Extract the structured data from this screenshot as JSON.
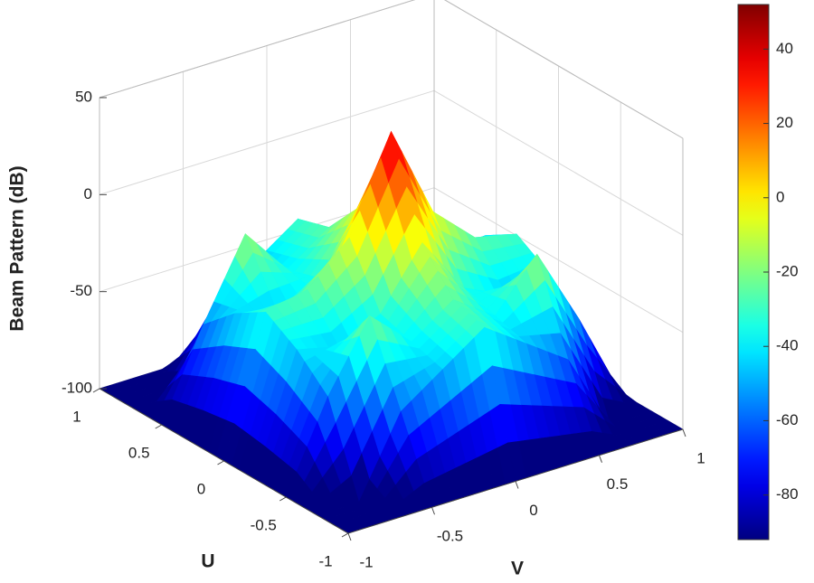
{
  "chart_data": {
    "type": "surface",
    "xlabel": "U",
    "ylabel": "V",
    "zlabel": "Beam Pattern (dB)",
    "u": [
      -1,
      -0.75,
      -0.5,
      -0.25,
      0,
      0.25,
      0.5,
      0.75,
      1
    ],
    "v": [
      -1,
      -0.75,
      -0.5,
      -0.25,
      0,
      0.25,
      0.5,
      0.75,
      1
    ],
    "z": [
      [
        -100,
        -100,
        -100,
        -100,
        -100,
        -100,
        -100,
        -100,
        -100
      ],
      [
        -100,
        -100,
        -60,
        -45,
        -30,
        -45,
        -60,
        -100,
        -100
      ],
      [
        -100,
        -55,
        -20,
        -40,
        -25,
        -40,
        -15,
        -55,
        -100
      ],
      [
        -100,
        -40,
        -45,
        -35,
        -5,
        -35,
        -45,
        -40,
        -100
      ],
      [
        -100,
        -30,
        -25,
        -5,
        43,
        -5,
        -25,
        -30,
        -100
      ],
      [
        -100,
        -40,
        -45,
        -35,
        -5,
        -35,
        -45,
        -40,
        -100
      ],
      [
        -100,
        -55,
        -15,
        -40,
        -25,
        -40,
        -30,
        -55,
        -100
      ],
      [
        -100,
        -100,
        -60,
        -45,
        -30,
        -45,
        -60,
        -100,
        -100
      ],
      [
        -100,
        -100,
        -100,
        -100,
        -100,
        -100,
        -100,
        -100,
        -100
      ]
    ],
    "xlim": [
      -1,
      1
    ],
    "xticks": [
      -1,
      -0.5,
      0,
      0.5,
      1
    ],
    "ylim": [
      -1,
      1
    ],
    "yticks": [
      -1,
      -0.5,
      0,
      0.5,
      1
    ],
    "zlim": [
      -100,
      50
    ],
    "zticks": [
      -100,
      -50,
      0,
      50
    ],
    "colormap": "jet",
    "clim": [
      -92,
      52
    ],
    "cticks": [
      -80,
      -60,
      -40,
      -20,
      0,
      20,
      40
    ],
    "grid": true
  }
}
